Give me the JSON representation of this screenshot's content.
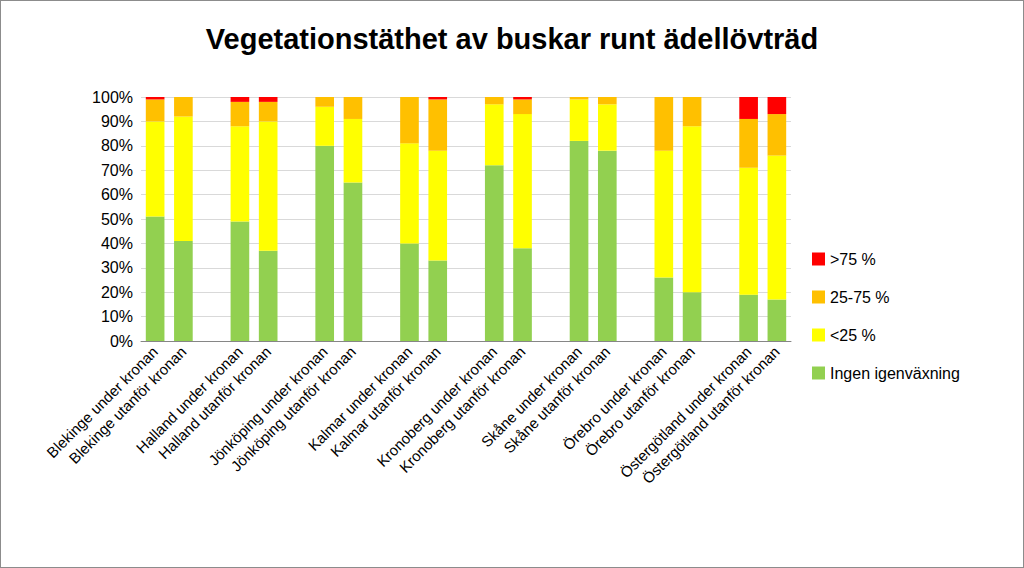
{
  "chart_data": {
    "type": "bar",
    "title": "Vegetationstäthet av buskar runt ädellövträd",
    "stacked": true,
    "grid": true,
    "legend": "right",
    "categories": [
      "Blekinge under kronan",
      "Blekinge utanför kronan",
      null,
      "Halland under kronan",
      "Halland utanför kronan",
      null,
      "Jönköping under kronan",
      "Jönköping utanför kronan",
      null,
      "Kalmar under kronan",
      "Kalmar utanför kronan",
      null,
      "Kronoberg under kronan",
      "Kronoberg utanför kronan",
      null,
      "Skåne under kronan",
      "Skåne utanför kronan",
      null,
      "Örebro under kronan",
      "Örebro utanför kronan",
      null,
      "Östergötland under kronan",
      "Östergötland utanför kronan"
    ],
    "series": [
      {
        "name": "Ingen igenväxning",
        "color": "#92d050",
        "values": [
          51,
          41,
          null,
          49,
          37,
          null,
          80,
          65,
          null,
          40,
          33,
          null,
          72,
          38,
          null,
          82,
          78,
          null,
          26,
          20,
          null,
          19,
          17
        ]
      },
      {
        "name": "<25 %",
        "color": "#ffff00",
        "values": [
          39,
          51,
          null,
          39,
          53,
          null,
          16,
          26,
          null,
          41,
          45,
          null,
          25,
          55,
          null,
          17,
          19,
          null,
          52,
          68,
          null,
          52,
          59
        ]
      },
      {
        "name": "25-75 %",
        "color": "#ffc000",
        "values": [
          9,
          8,
          null,
          10,
          8,
          null,
          4,
          9,
          null,
          19,
          21,
          null,
          3,
          6,
          null,
          1,
          3,
          null,
          22,
          12,
          null,
          20,
          17
        ]
      },
      {
        "name": ">75 %",
        "color": "#ff0000",
        "values": [
          1,
          0,
          null,
          2,
          2,
          null,
          0,
          0,
          null,
          0,
          1,
          null,
          0,
          1,
          null,
          0,
          0,
          null,
          0,
          0,
          null,
          9,
          7
        ]
      }
    ],
    "ylim": [
      0,
      100
    ],
    "yticks": [
      {
        "value": 0,
        "label": "0%"
      },
      {
        "value": 10,
        "label": "10%"
      },
      {
        "value": 20,
        "label": "20%"
      },
      {
        "value": 30,
        "label": "30%"
      },
      {
        "value": 40,
        "label": "40%"
      },
      {
        "value": 50,
        "label": "50%"
      },
      {
        "value": 60,
        "label": "60%"
      },
      {
        "value": 70,
        "label": "70%"
      },
      {
        "value": 80,
        "label": "80%"
      },
      {
        "value": 90,
        "label": "90%"
      },
      {
        "value": 100,
        "label": "100%"
      }
    ]
  }
}
